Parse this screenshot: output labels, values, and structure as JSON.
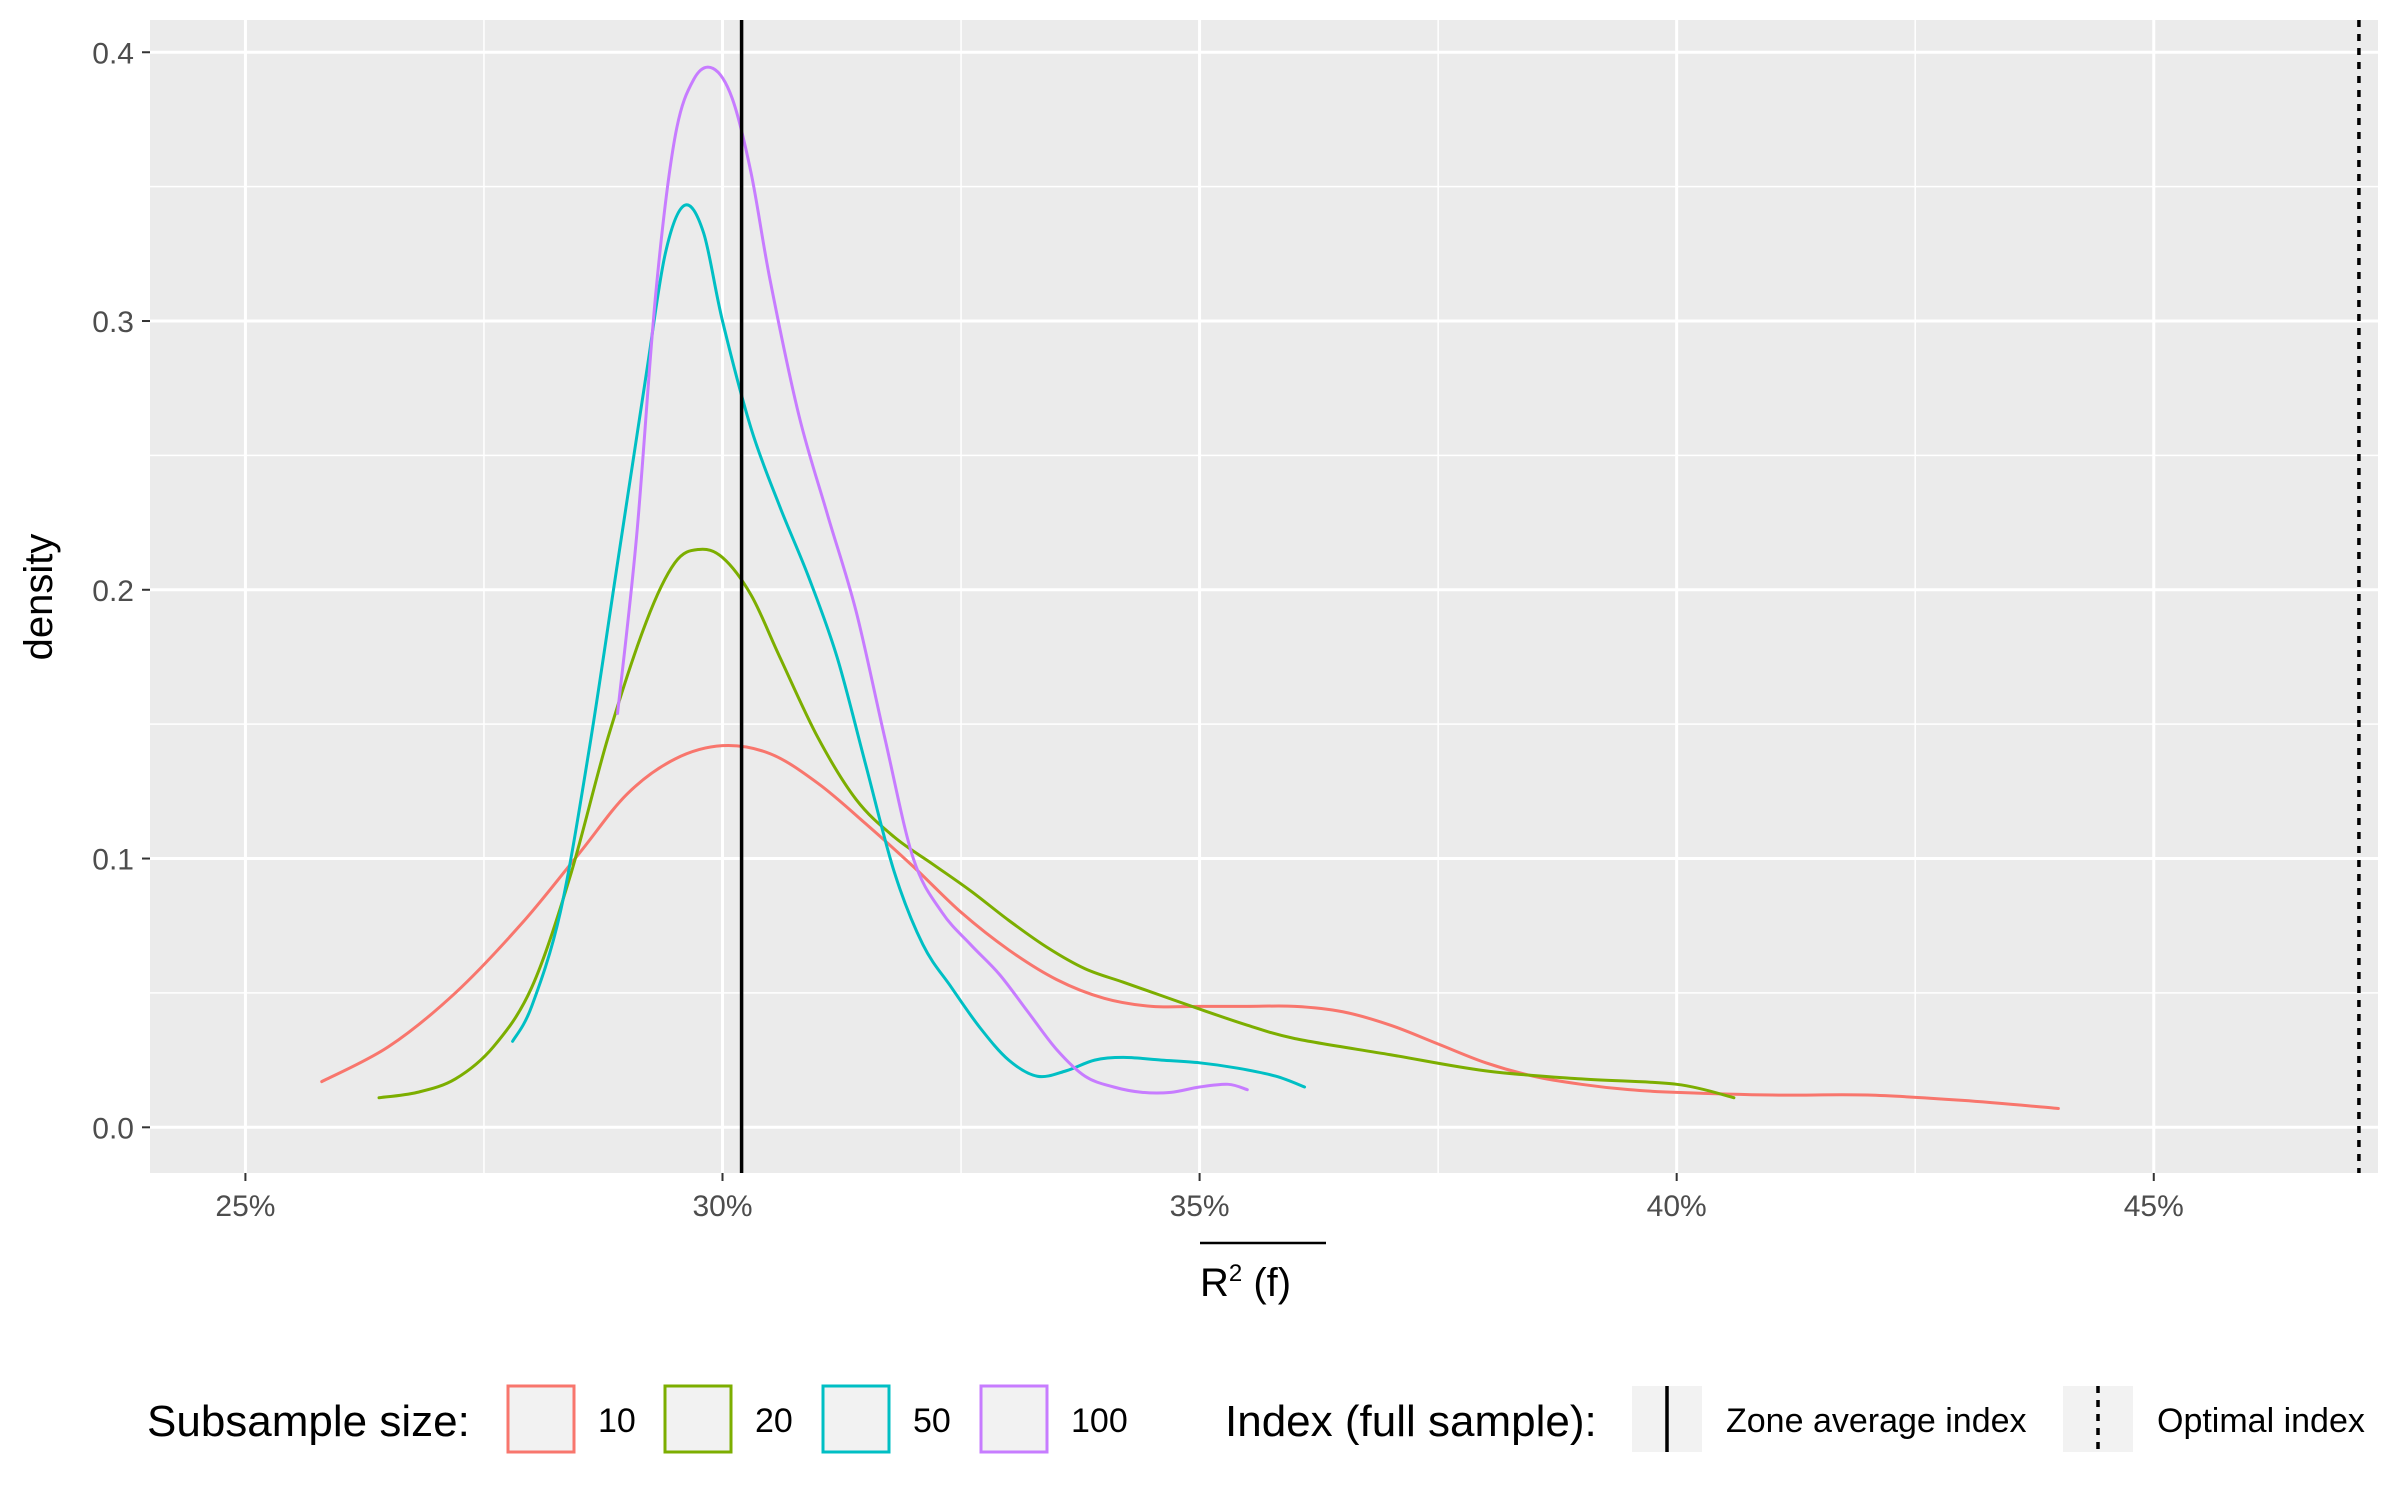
{
  "chart_data": {
    "type": "line",
    "subtype": "density",
    "xlabel": "R² (f)",
    "xlabel_overline": true,
    "ylabel": "density",
    "xlim": [
      0.24,
      0.4735
    ],
    "ylim": [
      -0.017,
      0.412
    ],
    "x_ticks": [
      0.25,
      0.3,
      0.35,
      0.4,
      0.45
    ],
    "x_tick_labels": [
      "25%",
      "30%",
      "35%",
      "40%",
      "45%"
    ],
    "y_ticks": [
      0.0,
      0.1,
      0.2,
      0.3,
      0.4
    ],
    "y_tick_labels": [
      "0.0",
      "0.1",
      "0.2",
      "0.3",
      "0.4"
    ],
    "grid": true,
    "panel_background": "#ebebeb",
    "legend_position": "bottom",
    "series": [
      {
        "name": "10",
        "color": "#F8766D",
        "points": [
          [
            0.258,
            0.017
          ],
          [
            0.265,
            0.03
          ],
          [
            0.272,
            0.05
          ],
          [
            0.279,
            0.076
          ],
          [
            0.285,
            0.102
          ],
          [
            0.29,
            0.124
          ],
          [
            0.295,
            0.137
          ],
          [
            0.3,
            0.142
          ],
          [
            0.305,
            0.139
          ],
          [
            0.31,
            0.128
          ],
          [
            0.315,
            0.113
          ],
          [
            0.32,
            0.097
          ],
          [
            0.325,
            0.08
          ],
          [
            0.33,
            0.066
          ],
          [
            0.335,
            0.055
          ],
          [
            0.34,
            0.048
          ],
          [
            0.345,
            0.045
          ],
          [
            0.35,
            0.045
          ],
          [
            0.355,
            0.045
          ],
          [
            0.36,
            0.045
          ],
          [
            0.365,
            0.043
          ],
          [
            0.37,
            0.038
          ],
          [
            0.375,
            0.031
          ],
          [
            0.38,
            0.024
          ],
          [
            0.385,
            0.019
          ],
          [
            0.39,
            0.016
          ],
          [
            0.395,
            0.014
          ],
          [
            0.4,
            0.013
          ],
          [
            0.41,
            0.012
          ],
          [
            0.42,
            0.012
          ],
          [
            0.43,
            0.01
          ],
          [
            0.44,
            0.007
          ]
        ]
      },
      {
        "name": "20",
        "color": "#7CAE00",
        "points": [
          [
            0.264,
            0.011
          ],
          [
            0.268,
            0.013
          ],
          [
            0.272,
            0.018
          ],
          [
            0.276,
            0.03
          ],
          [
            0.28,
            0.052
          ],
          [
            0.284,
            0.093
          ],
          [
            0.288,
            0.145
          ],
          [
            0.292,
            0.188
          ],
          [
            0.295,
            0.21
          ],
          [
            0.2975,
            0.215
          ],
          [
            0.3,
            0.212
          ],
          [
            0.303,
            0.198
          ],
          [
            0.306,
            0.175
          ],
          [
            0.31,
            0.145
          ],
          [
            0.314,
            0.122
          ],
          [
            0.318,
            0.108
          ],
          [
            0.322,
            0.098
          ],
          [
            0.326,
            0.088
          ],
          [
            0.33,
            0.077
          ],
          [
            0.334,
            0.067
          ],
          [
            0.338,
            0.059
          ],
          [
            0.342,
            0.054
          ],
          [
            0.346,
            0.049
          ],
          [
            0.35,
            0.044
          ],
          [
            0.355,
            0.038
          ],
          [
            0.36,
            0.033
          ],
          [
            0.37,
            0.027
          ],
          [
            0.38,
            0.021
          ],
          [
            0.39,
            0.018
          ],
          [
            0.4,
            0.016
          ],
          [
            0.406,
            0.011
          ]
        ]
      },
      {
        "name": "50",
        "color": "#00BFC4",
        "points": [
          [
            0.278,
            0.032
          ],
          [
            0.28,
            0.045
          ],
          [
            0.283,
            0.08
          ],
          [
            0.286,
            0.14
          ],
          [
            0.289,
            0.21
          ],
          [
            0.292,
            0.28
          ],
          [
            0.294,
            0.325
          ],
          [
            0.296,
            0.343
          ],
          [
            0.298,
            0.333
          ],
          [
            0.3,
            0.3
          ],
          [
            0.303,
            0.26
          ],
          [
            0.306,
            0.231
          ],
          [
            0.309,
            0.205
          ],
          [
            0.312,
            0.175
          ],
          [
            0.315,
            0.135
          ],
          [
            0.318,
            0.095
          ],
          [
            0.321,
            0.068
          ],
          [
            0.324,
            0.052
          ],
          [
            0.327,
            0.037
          ],
          [
            0.33,
            0.025
          ],
          [
            0.333,
            0.019
          ],
          [
            0.336,
            0.021
          ],
          [
            0.339,
            0.025
          ],
          [
            0.342,
            0.026
          ],
          [
            0.346,
            0.025
          ],
          [
            0.35,
            0.024
          ],
          [
            0.354,
            0.022
          ],
          [
            0.358,
            0.019
          ],
          [
            0.361,
            0.015
          ]
        ]
      },
      {
        "name": "100",
        "color": "#C77CFF",
        "points": [
          [
            0.289,
            0.154
          ],
          [
            0.291,
            0.22
          ],
          [
            0.293,
            0.31
          ],
          [
            0.295,
            0.368
          ],
          [
            0.297,
            0.39
          ],
          [
            0.299,
            0.394
          ],
          [
            0.301,
            0.383
          ],
          [
            0.303,
            0.355
          ],
          [
            0.305,
            0.315
          ],
          [
            0.308,
            0.265
          ],
          [
            0.311,
            0.228
          ],
          [
            0.314,
            0.192
          ],
          [
            0.317,
            0.145
          ],
          [
            0.32,
            0.1
          ],
          [
            0.323,
            0.08
          ],
          [
            0.326,
            0.068
          ],
          [
            0.329,
            0.057
          ],
          [
            0.332,
            0.043
          ],
          [
            0.335,
            0.029
          ],
          [
            0.338,
            0.019
          ],
          [
            0.341,
            0.015
          ],
          [
            0.344,
            0.013
          ],
          [
            0.347,
            0.013
          ],
          [
            0.35,
            0.015
          ],
          [
            0.353,
            0.016
          ],
          [
            0.355,
            0.014
          ]
        ]
      }
    ],
    "reference_lines": [
      {
        "name": "Zone average index",
        "x": 0.302,
        "linetype": "solid",
        "color": "#000000"
      },
      {
        "name": "Optimal index",
        "x": 0.4715,
        "linetype": "dotted",
        "color": "#000000"
      }
    ]
  },
  "legend": {
    "color_title": "Subsample size:",
    "color_items": [
      {
        "label": "10",
        "color": "#F8766D"
      },
      {
        "label": "20",
        "color": "#7CAE00"
      },
      {
        "label": "50",
        "color": "#00BFC4"
      },
      {
        "label": "100",
        "color": "#C77CFF"
      }
    ],
    "line_title": "Index (full sample):",
    "line_items": [
      {
        "label": "Zone average index",
        "linetype": "solid"
      },
      {
        "label": "Optimal index",
        "linetype": "dotted"
      }
    ]
  },
  "labels": {
    "x_main": "R",
    "x_super": "2",
    "x_rest": " (f)"
  }
}
